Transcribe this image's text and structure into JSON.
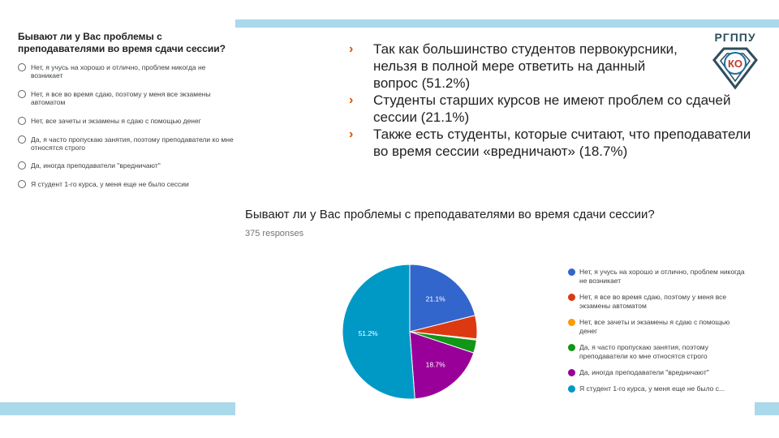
{
  "survey": {
    "question": "Бывают ли у Вас проблемы с преподавателями во время сдачи сессии?",
    "options": [
      "Нет, я учусь на хорошо и отлично, проблем никогда не возникает",
      "Нет, я все во время сдаю, поэтому у меня все экзамены автоматом",
      "Нет, все зачеты и экзамены я сдаю с помощью денег",
      "Да, я часто пропускаю занятия, поэтому преподаватели ко мне относятся строго",
      "Да, иногда преподаватели \"вредничают\"",
      "Я студент 1-го курса, у меня еще не было сессии"
    ]
  },
  "bullets": [
    "Так как большинство студентов первокурсники, нельзя в полной мере ответить на данный вопрос (51.2%)",
    "Студенты старших курсов не имеют проблем со сдачей сессии (21.1%)",
    "Также есть студенты, которые считают, что преподаватели во время сессии «вредничают» (18.7%)"
  ],
  "logo": {
    "text": "РГППУ",
    "mark": "КО"
  },
  "colors": {
    "accent_bar": "#a9d9ea",
    "bullet_arrow": "#d35400"
  },
  "chart_data": {
    "type": "pie",
    "title": "Бывают ли у Вас проблемы с преподавателями во время сдачи сессии?",
    "subtitle": "375 responses",
    "slices": [
      {
        "label": "Нет, я учусь на хорошо и отлично, проблем никогда не возникает",
        "value": 21.1,
        "color": "#3366cc",
        "pct_label": "21.1%"
      },
      {
        "label": "Нет, я все во время сдаю, поэтому у меня все экзамены автоматом",
        "value": 5.6,
        "color": "#dc3912",
        "pct_label": ""
      },
      {
        "label": "Нет, все зачеты и экзамены я сдаю с помощью денег",
        "value": 0.3,
        "color": "#ff9900",
        "pct_label": ""
      },
      {
        "label": "Да, я часто пропускаю занятия, поэтому преподаватели ко мне относятся строго",
        "value": 3.1,
        "color": "#109618",
        "pct_label": ""
      },
      {
        "label": "Да, иногда преподаватели \"вредничают\"",
        "value": 18.7,
        "color": "#990099",
        "pct_label": "18.7%"
      },
      {
        "label": "Я студент 1-го курса, у меня еще не было сессии",
        "value": 51.2,
        "color": "#0099c6",
        "pct_label": "51.2%"
      }
    ],
    "legend": [
      "Нет, я учусь на хорошо и отлично, проблем никогда не возникает",
      "Нет, я все во время сдаю, поэтому у меня все экзамены автоматом",
      "Нет, все зачеты и экзамены я сдаю с помощью денег",
      "Да, я часто пропускаю занятия, поэтому преподаватели ко мне относятся строго",
      "Да, иногда преподаватели \"вредничают\"",
      "Я студент 1-го курса, у меня еще не было с..."
    ],
    "legend_position": "right"
  }
}
